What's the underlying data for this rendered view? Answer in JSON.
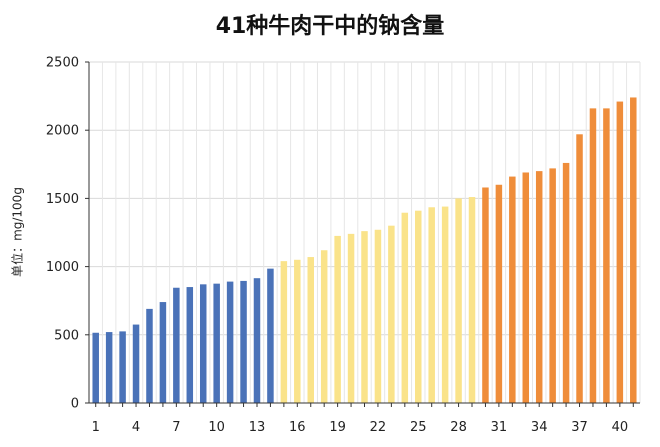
{
  "chart_data": {
    "type": "bar",
    "title": "41种牛肉干中的钠含量",
    "ylabel": "单位：mg/100g",
    "xlabel": "",
    "ylim": [
      0,
      2500
    ],
    "yticks": [
      0,
      500,
      1000,
      1500,
      2000,
      2500
    ],
    "x_tick_labels": [
      "1",
      "4",
      "7",
      "10",
      "13",
      "16",
      "19",
      "22",
      "25",
      "28",
      "31",
      "34",
      "37",
      "40"
    ],
    "grid": true,
    "categories": [
      1,
      2,
      3,
      4,
      5,
      6,
      7,
      8,
      9,
      10,
      11,
      12,
      13,
      14,
      15,
      16,
      17,
      18,
      19,
      20,
      21,
      22,
      23,
      24,
      25,
      26,
      27,
      28,
      29,
      30,
      31,
      32,
      33,
      34,
      35,
      36,
      37,
      38,
      39,
      40,
      41
    ],
    "values": [
      515,
      520,
      525,
      575,
      690,
      740,
      845,
      850,
      870,
      875,
      890,
      895,
      915,
      985,
      1040,
      1050,
      1070,
      1120,
      1225,
      1240,
      1260,
      1270,
      1300,
      1395,
      1410,
      1435,
      1440,
      1500,
      1510,
      1580,
      1600,
      1660,
      1690,
      1700,
      1720,
      1760,
      1970,
      2160,
      2160,
      2210,
      2240
    ],
    "colors": {
      "blue": "#4a72b8",
      "yellow": "#fae38a",
      "orange": "#ef8d3a",
      "grid": "#d9d9d9",
      "axis": "#333333"
    },
    "color_groups": [
      {
        "color": "blue",
        "from": 1,
        "to": 14
      },
      {
        "color": "yellow",
        "from": 15,
        "to": 29
      },
      {
        "color": "orange",
        "from": 30,
        "to": 41
      }
    ]
  }
}
